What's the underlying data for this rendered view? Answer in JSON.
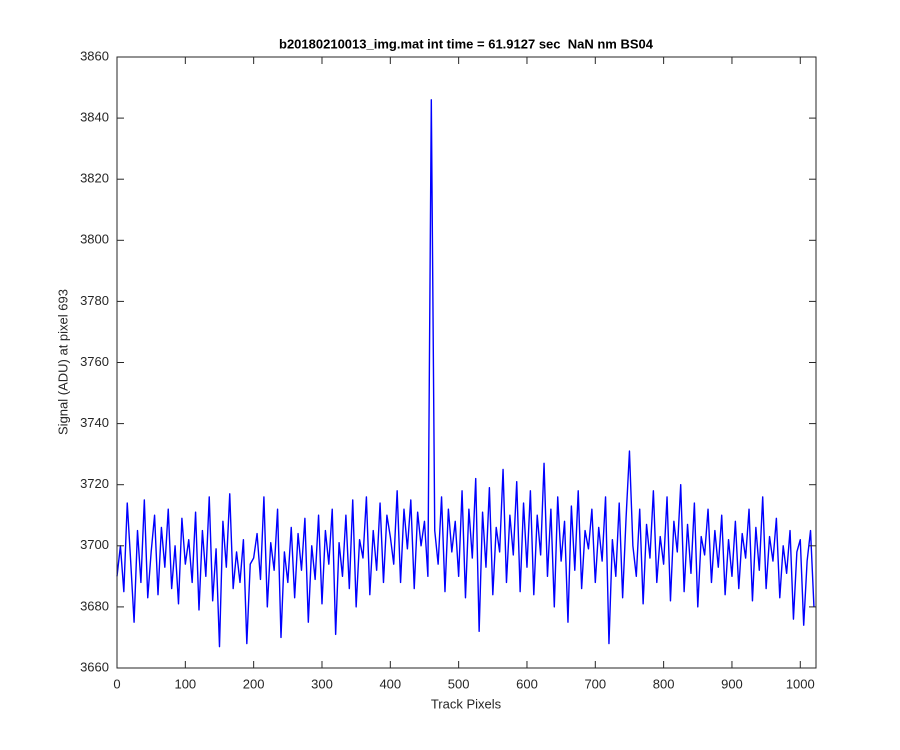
{
  "chart_data": {
    "type": "line",
    "title": "b20180210013_img.mat int time = 61.9127 sec  NaN nm BS04",
    "x_label": "Track Pixels",
    "y_label": "Signal (ADU) at pixel 693",
    "color": "#0000ff",
    "xlim": [
      0,
      1023
    ],
    "ylim": [
      3660,
      3860
    ],
    "xticks": [
      0,
      100,
      200,
      300,
      400,
      500,
      600,
      700,
      800,
      900,
      1000
    ],
    "yticks": [
      3660,
      3680,
      3700,
      3720,
      3740,
      3760,
      3780,
      3800,
      3820,
      3840,
      3860
    ],
    "x": [
      0,
      5,
      10,
      15,
      20,
      25,
      30,
      35,
      40,
      45,
      50,
      55,
      60,
      65,
      70,
      75,
      80,
      85,
      90,
      95,
      100,
      105,
      110,
      115,
      120,
      125,
      130,
      135,
      140,
      145,
      150,
      155,
      160,
      165,
      170,
      175,
      180,
      185,
      190,
      195,
      200,
      205,
      210,
      215,
      220,
      225,
      230,
      235,
      240,
      245,
      250,
      255,
      260,
      265,
      270,
      275,
      280,
      285,
      290,
      295,
      300,
      305,
      310,
      315,
      320,
      325,
      330,
      335,
      340,
      345,
      350,
      355,
      360,
      365,
      370,
      375,
      380,
      385,
      390,
      395,
      400,
      405,
      410,
      415,
      420,
      425,
      430,
      435,
      440,
      445,
      450,
      455,
      460,
      465,
      470,
      475,
      480,
      485,
      490,
      495,
      500,
      505,
      510,
      515,
      520,
      525,
      530,
      535,
      540,
      545,
      550,
      555,
      560,
      565,
      570,
      575,
      580,
      585,
      590,
      595,
      600,
      605,
      610,
      615,
      620,
      625,
      630,
      635,
      640,
      645,
      650,
      655,
      660,
      665,
      670,
      675,
      680,
      685,
      690,
      695,
      700,
      705,
      710,
      715,
      720,
      725,
      730,
      735,
      740,
      745,
      750,
      755,
      760,
      765,
      770,
      775,
      780,
      785,
      790,
      795,
      800,
      805,
      810,
      815,
      820,
      825,
      830,
      835,
      840,
      845,
      850,
      855,
      860,
      865,
      870,
      875,
      880,
      885,
      890,
      895,
      900,
      905,
      910,
      915,
      920,
      925,
      930,
      935,
      940,
      945,
      950,
      955,
      960,
      965,
      970,
      975,
      980,
      985,
      990,
      995,
      1000,
      1005,
      1010,
      1015,
      1020
    ],
    "values": [
      3690,
      3700,
      3685,
      3714,
      3695,
      3675,
      3705,
      3688,
      3715,
      3683,
      3698,
      3710,
      3684,
      3706,
      3693,
      3712,
      3686,
      3700,
      3681,
      3709,
      3694,
      3702,
      3688,
      3711,
      3679,
      3705,
      3690,
      3716,
      3682,
      3699,
      3667,
      3708,
      3693,
      3717,
      3686,
      3698,
      3688,
      3702,
      3668,
      3694,
      3696,
      3704,
      3689,
      3716,
      3680,
      3701,
      3692,
      3712,
      3670,
      3698,
      3688,
      3706,
      3683,
      3704,
      3692,
      3709,
      3675,
      3700,
      3689,
      3710,
      3681,
      3705,
      3694,
      3712,
      3671,
      3701,
      3690,
      3710,
      3686,
      3715,
      3680,
      3702,
      3696,
      3716,
      3684,
      3705,
      3692,
      3714,
      3688,
      3710,
      3703,
      3694,
      3718,
      3688,
      3712,
      3699,
      3715,
      3686,
      3711,
      3700,
      3708,
      3690,
      3846,
      3705,
      3694,
      3716,
      3685,
      3712,
      3698,
      3708,
      3690,
      3718,
      3683,
      3712,
      3696,
      3722,
      3672,
      3711,
      3693,
      3719,
      3684,
      3706,
      3698,
      3725,
      3688,
      3710,
      3697,
      3721,
      3685,
      3714,
      3693,
      3718,
      3684,
      3710,
      3697,
      3727,
      3690,
      3712,
      3680,
      3716,
      3695,
      3708,
      3675,
      3713,
      3692,
      3718,
      3686,
      3705,
      3699,
      3712,
      3688,
      3706,
      3695,
      3716,
      3668,
      3702,
      3690,
      3714,
      3683,
      3709,
      3731,
      3700,
      3690,
      3712,
      3681,
      3707,
      3696,
      3718,
      3688,
      3703,
      3694,
      3716,
      3682,
      3708,
      3698,
      3720,
      3685,
      3707,
      3691,
      3714,
      3680,
      3703,
      3697,
      3712,
      3688,
      3705,
      3693,
      3710,
      3684,
      3702,
      3690,
      3708,
      3686,
      3704,
      3696,
      3712,
      3682,
      3706,
      3692,
      3716,
      3686,
      3703,
      3695,
      3709,
      3683,
      3700,
      3691,
      3705,
      3676,
      3698,
      3702,
      3674,
      3695,
      3705,
      3680
    ]
  }
}
